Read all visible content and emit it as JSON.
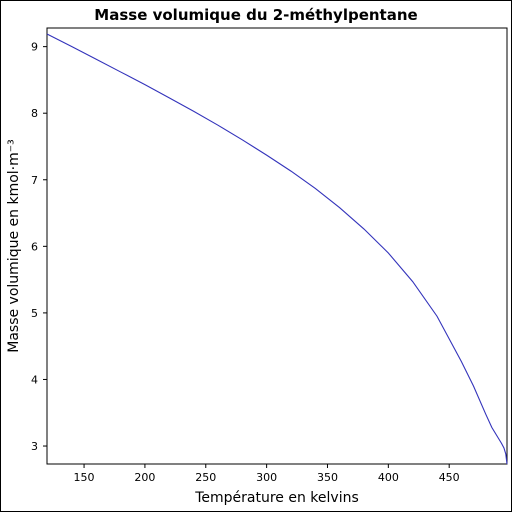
{
  "chart_data": {
    "type": "line",
    "title": "Masse volumique du 2-méthylpentane",
    "xlabel": "Température en kelvins",
    "ylabel": "Masse volumique en kmol·m⁻³",
    "xlim": [
      119.55,
      497.5
    ],
    "ylim": [
      2.73,
      9.28
    ],
    "xticks": [
      150,
      200,
      250,
      300,
      350,
      400,
      450
    ],
    "yticks": [
      3,
      4,
      5,
      6,
      7,
      8,
      9
    ],
    "grid": false,
    "series": [
      {
        "color": "#3333bb",
        "x": [
          119.55,
          140,
          160,
          180,
          200,
          220,
          240,
          260,
          280,
          300,
          320,
          340,
          360,
          380,
          400,
          420,
          440,
          460,
          470,
          480,
          485,
          490,
          493,
          495,
          496.5,
          497.5
        ],
        "y": [
          9.19,
          9.0,
          8.81,
          8.62,
          8.43,
          8.23,
          8.03,
          7.82,
          7.6,
          7.37,
          7.13,
          6.87,
          6.58,
          6.26,
          5.9,
          5.47,
          4.95,
          4.27,
          3.9,
          3.48,
          3.28,
          3.13,
          3.04,
          2.97,
          2.88,
          2.73
        ]
      }
    ]
  }
}
